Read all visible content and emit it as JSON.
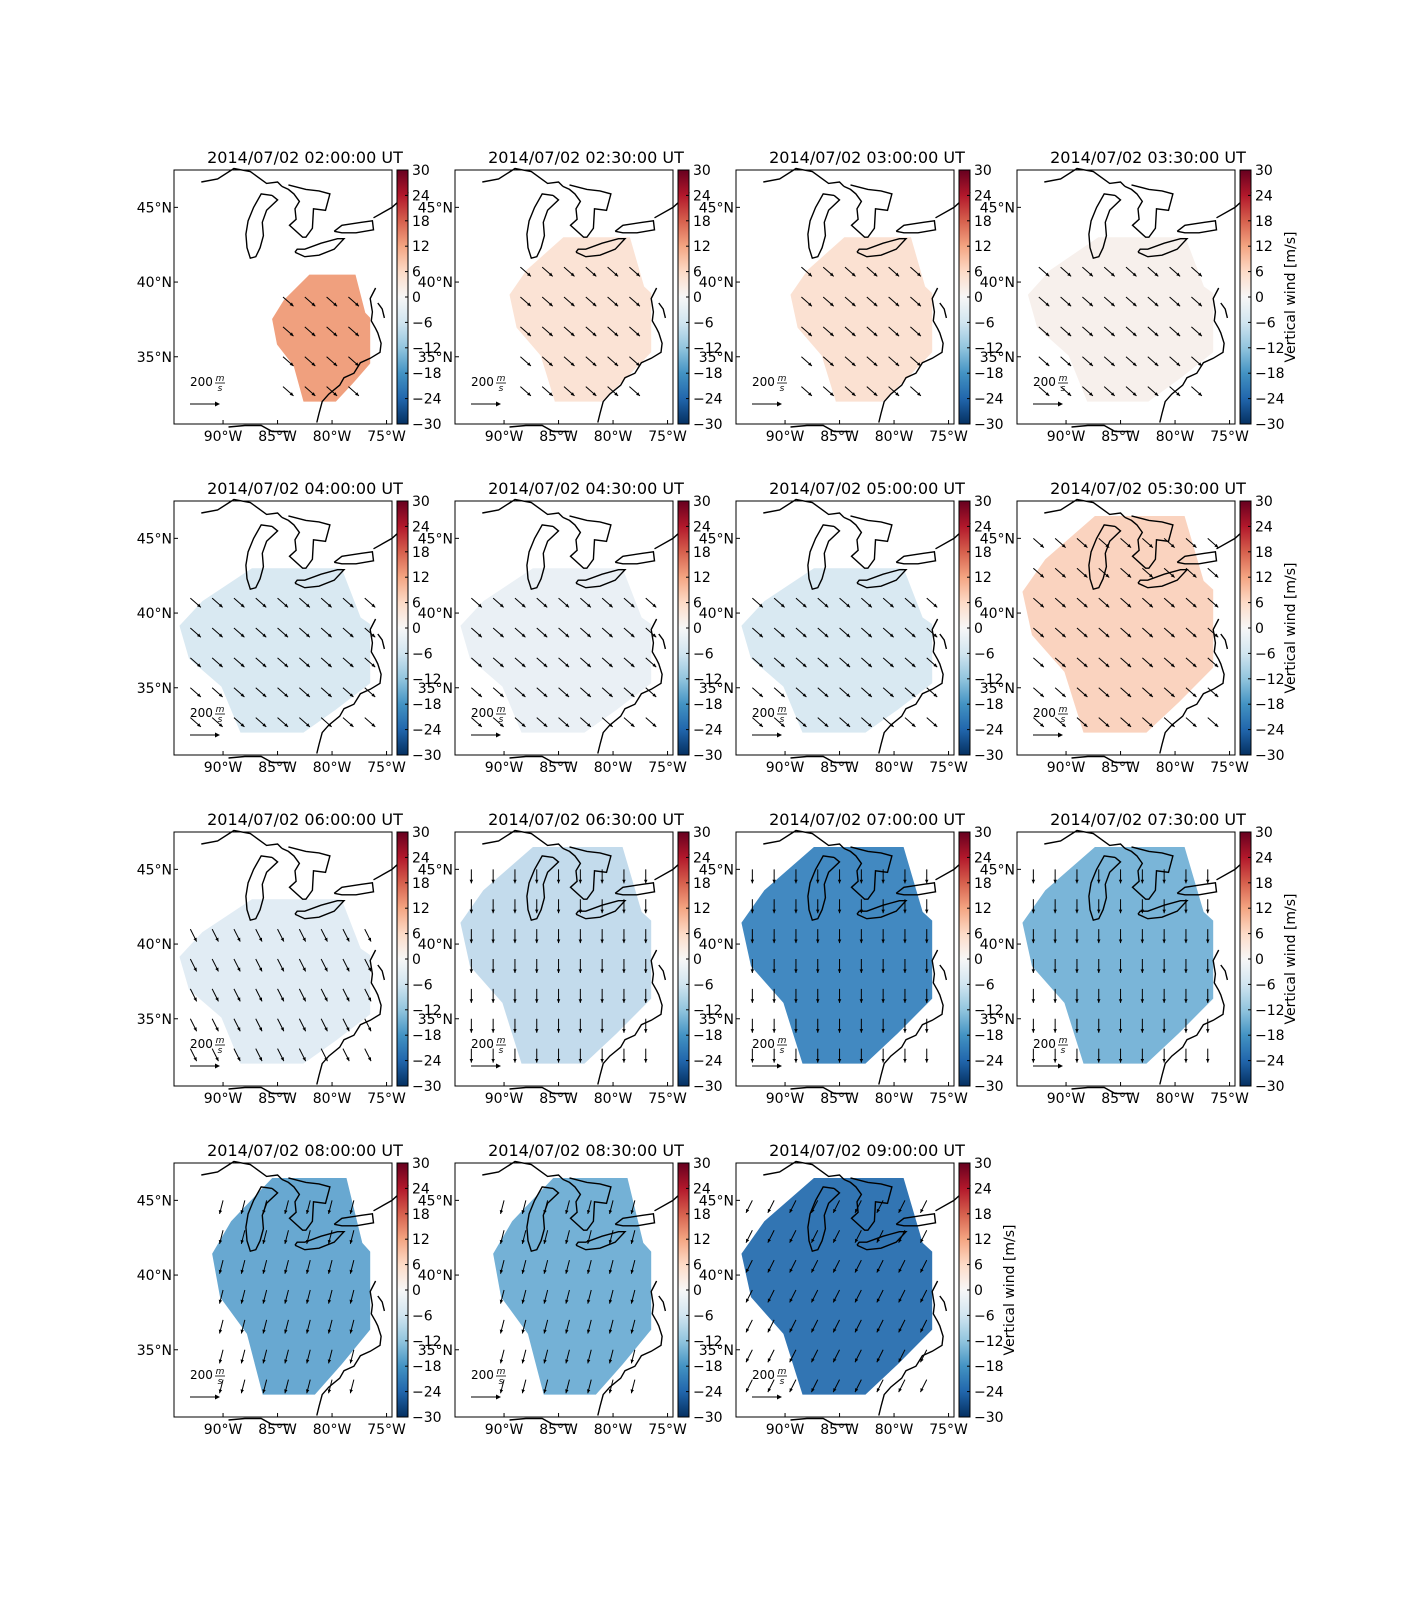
{
  "chart_data": {
    "type": "heatmap",
    "panel_count": 15,
    "colorbar": {
      "label": "Vertical wind [m/s]",
      "range": [
        -30,
        30
      ],
      "ticks": [
        "30",
        "24",
        "18",
        "12",
        "6",
        "0",
        "−6",
        "−12",
        "−18",
        "−24",
        "−30"
      ],
      "colormap": "RdBu_r"
    },
    "x_ticks": [
      "90°W",
      "85°W",
      "80°W",
      "75°W"
    ],
    "y_ticks": [
      "45°N",
      "40°N",
      "35°N"
    ],
    "lon_range": [
      -94.5,
      -74.5
    ],
    "lat_range": [
      30.5,
      47.5
    ],
    "reference_vector": {
      "label": "200",
      "unit_numerator": "m",
      "unit_denominator": "s"
    },
    "panels": [
      {
        "title": "2014/07/02 02:00:00 UT",
        "vertical_wind": 9,
        "color": "#f0a07e",
        "wind_dir": "SE",
        "lon_range": [
          -85.5,
          -76.5
        ],
        "lat_range": [
          32.0,
          40.5
        ]
      },
      {
        "title": "2014/07/02 02:30:00 UT",
        "vertical_wind": 2,
        "color": "#fbe3d5",
        "wind_dir": "SE",
        "lon_range": [
          -89.5,
          -76.5
        ],
        "lat_range": [
          32.0,
          43.0
        ]
      },
      {
        "title": "2014/07/02 03:00:00 UT",
        "vertical_wind": 2,
        "color": "#fbe1d2",
        "wind_dir": "SE",
        "lon_range": [
          -89.5,
          -76.5
        ],
        "lat_range": [
          32.0,
          43.0
        ]
      },
      {
        "title": "2014/07/02 03:30:00 UT",
        "vertical_wind": 1,
        "color": "#f7f0ec",
        "wind_dir": "SE",
        "lon_range": [
          -93.5,
          -76.5
        ],
        "lat_range": [
          32.0,
          43.0
        ]
      },
      {
        "title": "2014/07/02 04:00:00 UT",
        "vertical_wind": -3,
        "color": "#d9e9f2",
        "wind_dir": "SE",
        "lon_range": [
          -94.0,
          -76.5
        ],
        "lat_range": [
          32.0,
          43.0
        ]
      },
      {
        "title": "2014/07/02 04:30:00 UT",
        "vertical_wind": -1,
        "color": "#eaf0f5",
        "wind_dir": "SE",
        "lon_range": [
          -94.0,
          -76.5
        ],
        "lat_range": [
          32.0,
          43.0
        ]
      },
      {
        "title": "2014/07/02 05:00:00 UT",
        "vertical_wind": -3,
        "color": "#d9e9f2",
        "wind_dir": "SE",
        "lon_range": [
          -94.0,
          -76.5
        ],
        "lat_range": [
          32.0,
          43.0
        ]
      },
      {
        "title": "2014/07/02 05:30:00 UT",
        "vertical_wind": 4,
        "color": "#fad3bf",
        "wind_dir": "SE",
        "lon_range": [
          -94.0,
          -76.5
        ],
        "lat_range": [
          32.0,
          46.5
        ]
      },
      {
        "title": "2014/07/02 06:00:00 UT",
        "vertical_wind": -2,
        "color": "#e1ecf4",
        "wind_dir": "SSE",
        "lon_range": [
          -94.0,
          -76.5
        ],
        "lat_range": [
          32.0,
          43.0
        ]
      },
      {
        "title": "2014/07/02 06:30:00 UT",
        "vertical_wind": -6,
        "color": "#c3dbec",
        "wind_dir": "S",
        "lon_range": [
          -94.0,
          -76.5
        ],
        "lat_range": [
          32.0,
          46.5
        ]
      },
      {
        "title": "2014/07/02 07:00:00 UT",
        "vertical_wind": -18,
        "color": "#4289c1",
        "wind_dir": "S",
        "lon_range": [
          -94.0,
          -76.5
        ],
        "lat_range": [
          32.0,
          46.5
        ]
      },
      {
        "title": "2014/07/02 07:30:00 UT",
        "vertical_wind": -12,
        "color": "#7ab5d8",
        "wind_dir": "S",
        "lon_range": [
          -94.0,
          -76.5
        ],
        "lat_range": [
          32.0,
          46.5
        ]
      },
      {
        "title": "2014/07/02 08:00:00 UT",
        "vertical_wind": -15,
        "color": "#68a8d1",
        "wind_dir": "SSW",
        "lon_range": [
          -91.0,
          -76.5
        ],
        "lat_range": [
          32.0,
          46.5
        ]
      },
      {
        "title": "2014/07/02 08:30:00 UT",
        "vertical_wind": -13,
        "color": "#74b1d6",
        "wind_dir": "SSW",
        "lon_range": [
          -91.0,
          -76.5
        ],
        "lat_range": [
          32.0,
          46.5
        ]
      },
      {
        "title": "2014/07/02 09:00:00 UT",
        "vertical_wind": -20,
        "color": "#3275b3",
        "wind_dir": "SW",
        "lon_range": [
          -94.0,
          -76.5
        ],
        "lat_range": [
          32.0,
          46.5
        ]
      }
    ]
  }
}
